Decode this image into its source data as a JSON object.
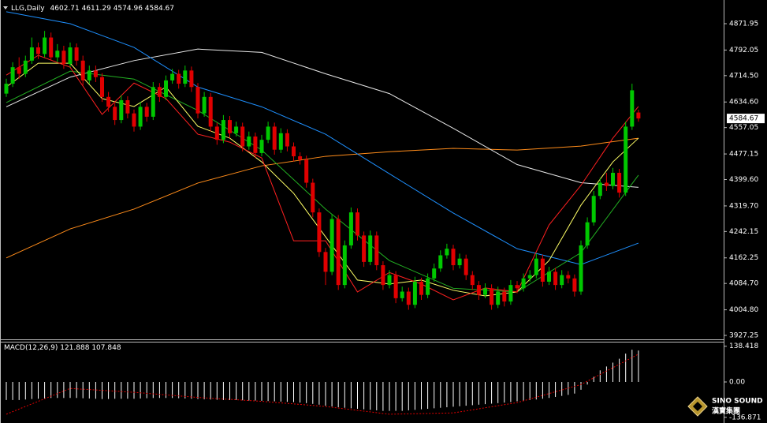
{
  "chart_data": [
    {
      "type": "candlestick",
      "title": "LLG,Daily",
      "up_color": "#00c800",
      "down_color": "#e00000",
      "ylim": [
        3915.3,
        4943.7
      ],
      "yticks": [
        4871.95,
        4792.05,
        {
          "value": 4714.5,
          "label": "4714.50"
        },
        {
          "value": 4634.6,
          "label": "4634.60"
        },
        4557.05,
        4477.15,
        {
          "value": 4399.6,
          "label": "4399.60"
        },
        {
          "value": 4319.7,
          "label": "4319.70"
        },
        4242.15,
        4162.25,
        {
          "value": 4084.7,
          "label": "4084.70"
        },
        {
          "value": 4004.8,
          "label": "4004.80"
        },
        3927.25
      ],
      "candles": [
        [
          4660,
          4705,
          4650,
          4690
        ],
        [
          4690,
          4755,
          4680,
          4740
        ],
        [
          4740,
          4770,
          4705,
          4720
        ],
        [
          4720,
          4775,
          4710,
          4760
        ],
        [
          4760,
          4830,
          4750,
          4800
        ],
        [
          4800,
          4815,
          4765,
          4780
        ],
        [
          4780,
          4850,
          4770,
          4830
        ],
        [
          4830,
          4845,
          4760,
          4770
        ],
        [
          4770,
          4810,
          4755,
          4790
        ],
        [
          4790,
          4805,
          4735,
          4750
        ],
        [
          4750,
          4815,
          4740,
          4800
        ],
        [
          4800,
          4812,
          4745,
          4760
        ],
        [
          4760,
          4775,
          4685,
          4700
        ],
        [
          4700,
          4745,
          4690,
          4730
        ],
        [
          4730,
          4745,
          4695,
          4710
        ],
        [
          4710,
          4722,
          4635,
          4650
        ],
        [
          4650,
          4665,
          4605,
          4620
        ],
        [
          4620,
          4632,
          4565,
          4580
        ],
        [
          4580,
          4655,
          4570,
          4640
        ],
        [
          4640,
          4652,
          4585,
          4600
        ],
        [
          4600,
          4612,
          4545,
          4560
        ],
        [
          4560,
          4635,
          4550,
          4620
        ],
        [
          4620,
          4632,
          4575,
          4590
        ],
        [
          4590,
          4695,
          4580,
          4680
        ],
        [
          4680,
          4692,
          4635,
          4650
        ],
        [
          4650,
          4715,
          4640,
          4700
        ],
        [
          4700,
          4735,
          4690,
          4720
        ],
        [
          4720,
          4732,
          4675,
          4690
        ],
        [
          4690,
          4745,
          4680,
          4730
        ],
        [
          4730,
          4742,
          4665,
          4680
        ],
        [
          4680,
          4692,
          4585,
          4600
        ],
        [
          4600,
          4665,
          4590,
          4650
        ],
        [
          4650,
          4662,
          4545,
          4560
        ],
        [
          4560,
          4572,
          4505,
          4520
        ],
        [
          4520,
          4595,
          4510,
          4580
        ],
        [
          4580,
          4592,
          4525,
          4540
        ],
        [
          4540,
          4575,
          4530,
          4560
        ],
        [
          4560,
          4572,
          4485,
          4500
        ],
        [
          4500,
          4545,
          4490,
          4530
        ],
        [
          4530,
          4542,
          4465,
          4480
        ],
        [
          4480,
          4535,
          4470,
          4520
        ],
        [
          4520,
          4575,
          4510,
          4560
        ],
        [
          4560,
          4572,
          4475,
          4490
        ],
        [
          4490,
          4555,
          4480,
          4540
        ],
        [
          4540,
          4552,
          4485,
          4500
        ],
        [
          4500,
          4512,
          4455,
          4470
        ],
        [
          4470,
          4482,
          4445,
          4460
        ],
        [
          4460,
          4472,
          4375,
          4390
        ],
        [
          4390,
          4402,
          4285,
          4300
        ],
        [
          4300,
          4312,
          4165,
          4180
        ],
        [
          4180,
          4192,
          4080,
          4120
        ],
        [
          4120,
          4295,
          4110,
          4280
        ],
        [
          4280,
          4292,
          4065,
          4080
        ],
        [
          4080,
          4215,
          4070,
          4200
        ],
        [
          4200,
          4315,
          4190,
          4300
        ],
        [
          4300,
          4312,
          4215,
          4230
        ],
        [
          4230,
          4242,
          4135,
          4150
        ],
        [
          4150,
          4245,
          4140,
          4230
        ],
        [
          4230,
          4242,
          4125,
          4140
        ],
        [
          4140,
          4152,
          4065,
          4080
        ],
        [
          4080,
          4125,
          4070,
          4110
        ],
        [
          4110,
          4122,
          4025,
          4040
        ],
        [
          4040,
          4075,
          4030,
          4060
        ],
        [
          4060,
          4072,
          4005,
          4020
        ],
        [
          4020,
          4105,
          4010,
          4090
        ],
        [
          4090,
          4102,
          4035,
          4050
        ],
        [
          4050,
          4115,
          4040,
          4100
        ],
        [
          4100,
          4145,
          4090,
          4130
        ],
        [
          4130,
          4185,
          4120,
          4170
        ],
        [
          4170,
          4205,
          4160,
          4190
        ],
        [
          4190,
          4202,
          4125,
          4140
        ],
        [
          4140,
          4175,
          4130,
          4160
        ],
        [
          4160,
          4172,
          4095,
          4110
        ],
        [
          4110,
          4122,
          4065,
          4080
        ],
        [
          4080,
          4092,
          4035,
          4050
        ],
        [
          4050,
          4085,
          4040,
          4070
        ],
        [
          4070,
          4082,
          4005,
          4020
        ],
        [
          4020,
          4075,
          4010,
          4060
        ],
        [
          4060,
          4072,
          4015,
          4030
        ],
        [
          4030,
          4095,
          4020,
          4080
        ],
        [
          4080,
          4092,
          4055,
          4070
        ],
        [
          4070,
          4115,
          4060,
          4100
        ],
        [
          4100,
          4125,
          4090,
          4110
        ],
        [
          4110,
          4175,
          4100,
          4160
        ],
        [
          4160,
          4172,
          4075,
          4090
        ],
        [
          4090,
          4135,
          4080,
          4120
        ],
        [
          4120,
          4132,
          4065,
          4080
        ],
        [
          4080,
          4125,
          4070,
          4110
        ],
        [
          4110,
          4122,
          4085,
          4100
        ],
        [
          4100,
          4112,
          4045,
          4060
        ],
        [
          4060,
          4215,
          4050,
          4200
        ],
        [
          4200,
          4285,
          4190,
          4270
        ],
        [
          4270,
          4365,
          4260,
          4350
        ],
        [
          4350,
          4405,
          4340,
          4390
        ],
        [
          4390,
          4420,
          4365,
          4380
        ],
        [
          4380,
          4435,
          4370,
          4420
        ],
        [
          4420,
          4432,
          4345,
          4360
        ],
        [
          4360,
          4575,
          4350,
          4560
        ],
        [
          4560,
          4690,
          4550,
          4670
        ],
        [
          4602.71,
          4611.29,
          4574.96,
          4584.67
        ]
      ],
      "lines": [
        {
          "color": "#ff8c1a",
          "x": [
            0,
            10,
            20,
            30,
            40,
            50,
            60,
            70,
            80,
            90,
            99
          ],
          "values": [
            4162,
            4250,
            4310,
            4389,
            4441,
            4470,
            4484,
            4494,
            4489,
            4501,
            4525
          ]
        },
        {
          "color": "#e8e8e8",
          "x": [
            0,
            10,
            20,
            30,
            40,
            50,
            60,
            70,
            80,
            90,
            99
          ],
          "values": [
            4620,
            4710,
            4760,
            4795,
            4785,
            4720,
            4660,
            4555,
            4445,
            4390,
            4376
          ]
        },
        {
          "color": "#1e90ff",
          "x": [
            0,
            10,
            20,
            30,
            40,
            50,
            60,
            70,
            80,
            90,
            99
          ],
          "values": [
            4908,
            4872,
            4800,
            4680,
            4620,
            4537,
            4417,
            4298,
            4190,
            4142,
            4207
          ]
        },
        {
          "color": "#22b022",
          "x": [
            0,
            10,
            20,
            30,
            40,
            50,
            60,
            70,
            80,
            90,
            99
          ],
          "values": [
            4633,
            4728,
            4704,
            4609,
            4489,
            4310,
            4154,
            4070,
            4059,
            4178,
            4413
          ]
        },
        {
          "color": "#ffff66",
          "x": [
            0,
            5,
            10,
            15,
            20,
            25,
            30,
            35,
            40,
            45,
            50,
            55,
            60,
            65,
            70,
            75,
            80,
            85,
            90,
            95,
            99
          ],
          "values": [
            4680,
            4752,
            4752,
            4645,
            4621,
            4680,
            4561,
            4525,
            4453,
            4358,
            4226,
            4095,
            4083,
            4095,
            4064,
            4047,
            4059,
            4154,
            4322,
            4453,
            4525
          ]
        },
        {
          "color": "#ff2020",
          "x": [
            0,
            5,
            10,
            15,
            20,
            25,
            30,
            35,
            40,
            45,
            50,
            55,
            60,
            65,
            70,
            75,
            80,
            85,
            90,
            95,
            99
          ],
          "values": [
            4716,
            4776,
            4740,
            4597,
            4692,
            4645,
            4537,
            4513,
            4465,
            4214,
            4214,
            4059,
            4118,
            4083,
            4035,
            4071,
            4059,
            4262,
            4382,
            4525,
            4621
          ]
        }
      ]
    },
    {
      "type": "macd",
      "title": "MACD(12,26,9)",
      "ylim": [
        -159,
        156
      ],
      "yticks": [
        138.418,
        {
          "value": 0,
          "label": "0.00"
        },
        -136.871
      ],
      "histogram_color": "#ffffff",
      "signal_color": "#e00000",
      "histogram": [
        -70,
        -70,
        -70,
        -68,
        -66,
        -65,
        -64,
        -62,
        -62,
        -62,
        -62,
        -62,
        -63,
        -64,
        -65,
        -66,
        -66,
        -65,
        -65,
        -65,
        -65,
        -64,
        -63,
        -62,
        -62,
        -62,
        -62,
        -63,
        -64,
        -65,
        -66,
        -67,
        -68,
        -69,
        -70,
        -70,
        -70,
        -71,
        -72,
        -72,
        -73,
        -74,
        -75,
        -76,
        -77,
        -78,
        -80,
        -82,
        -85,
        -88,
        -92,
        -95,
        -98,
        -100,
        -102,
        -104,
        -106,
        -108,
        -110,
        -112,
        -112,
        -112,
        -112,
        -110,
        -108,
        -106,
        -104,
        -102,
        -100,
        -98,
        -96,
        -94,
        -92,
        -90,
        -88,
        -86,
        -84,
        -82,
        -80,
        -78,
        -75,
        -72,
        -70,
        -68,
        -65,
        -62,
        -58,
        -54,
        -50,
        -45,
        -30,
        -10,
        20,
        45,
        60,
        75,
        90,
        110,
        125,
        121.888
      ],
      "signal_x": [
        0,
        10,
        20,
        30,
        40,
        50,
        60,
        70,
        80,
        90,
        99
      ],
      "signal": [
        -125,
        -25,
        -40,
        -60,
        -75,
        -95,
        -125,
        -120,
        -80,
        -10,
        107.848
      ]
    }
  ],
  "logo": {
    "name": "SINO SOUND",
    "subtitle": "漢寶集團"
  }
}
